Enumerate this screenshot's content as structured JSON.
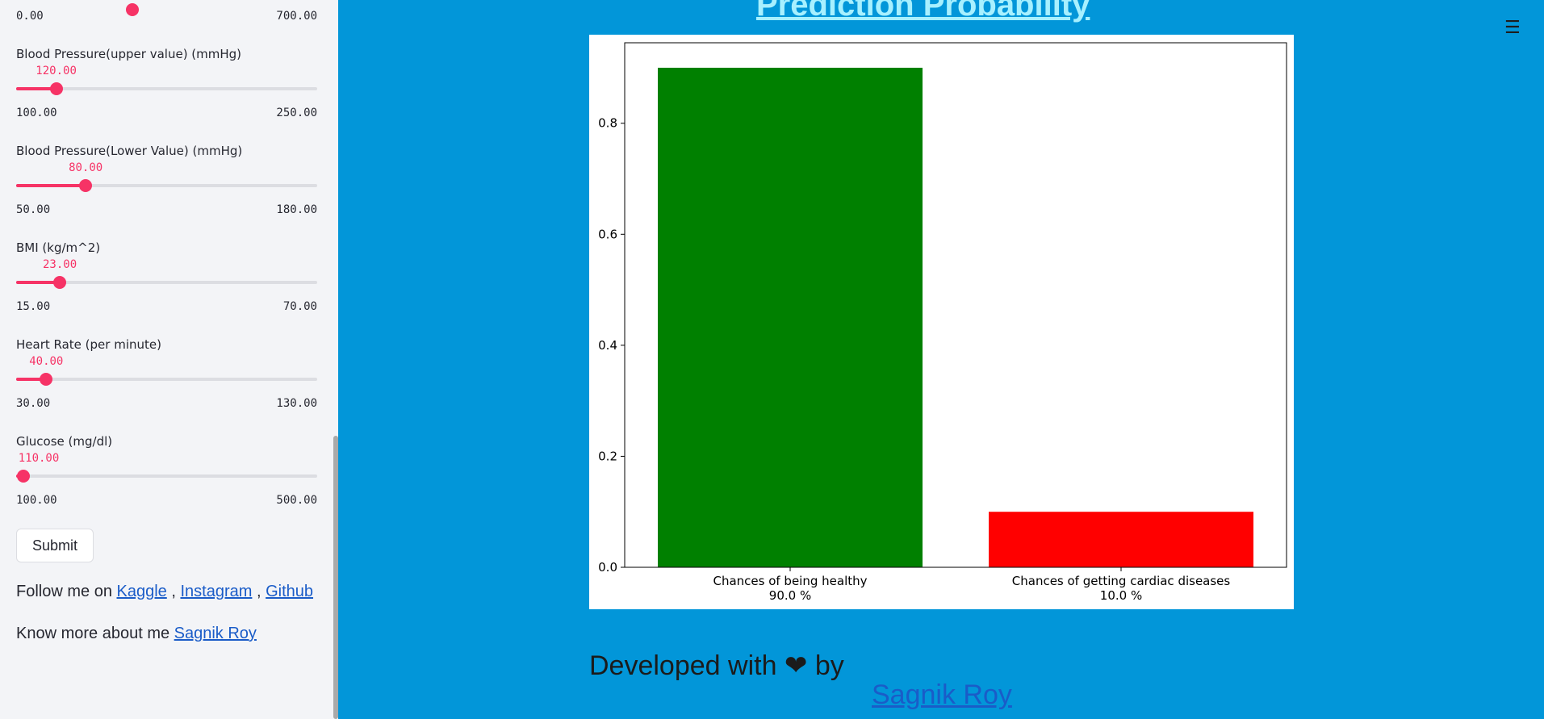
{
  "sidebar": {
    "top_slider": {
      "min": "0.00",
      "max": "700.00"
    },
    "sliders": [
      {
        "label": "Blood Pressure(upper value) (mmHg)",
        "value": "120.00",
        "min": "100.00",
        "max": "250.00",
        "fraction": 0.133
      },
      {
        "label": "Blood Pressure(Lower Value) (mmHg)",
        "value": "80.00",
        "min": "50.00",
        "max": "180.00",
        "fraction": 0.231
      },
      {
        "label": "BMI (kg/m^2)",
        "value": "23.00",
        "min": "15.00",
        "max": "70.00",
        "fraction": 0.145
      },
      {
        "label": "Heart Rate (per minute)",
        "value": "40.00",
        "min": "30.00",
        "max": "130.00",
        "fraction": 0.1
      },
      {
        "label": "Glucose (mg/dl)",
        "value": "110.00",
        "min": "100.00",
        "max": "500.00",
        "fraction": 0.025
      }
    ],
    "submit_label": "Submit",
    "follow_prefix": "Follow me on ",
    "links": [
      "Kaggle",
      "Instagram",
      "Github"
    ],
    "separator": ",",
    "know_prefix": "Know more about me ",
    "know_link": "Sagnik Roy"
  },
  "main": {
    "title": "Prediction Probability",
    "menu_icon": "☰",
    "developed_text": "Developed with ❤ by",
    "author": "Sagnik Roy"
  },
  "colors": {
    "accent": "#f63366",
    "background": "#0296d9",
    "healthy": "#008000",
    "disease": "#ff0000"
  },
  "chart_data": {
    "type": "bar",
    "categories": [
      "Chances of being healthy",
      "Chances of getting cardiac diseases"
    ],
    "category_sublabels": [
      "90.0 %",
      "10.0 %"
    ],
    "values": [
      0.9,
      0.1
    ],
    "colors": [
      "#008000",
      "#ff0000"
    ],
    "yticks": [
      "0.0",
      "0.2",
      "0.4",
      "0.6",
      "0.8"
    ],
    "ylim": [
      0,
      0.945
    ],
    "title": "",
    "xlabel": "",
    "ylabel": ""
  }
}
